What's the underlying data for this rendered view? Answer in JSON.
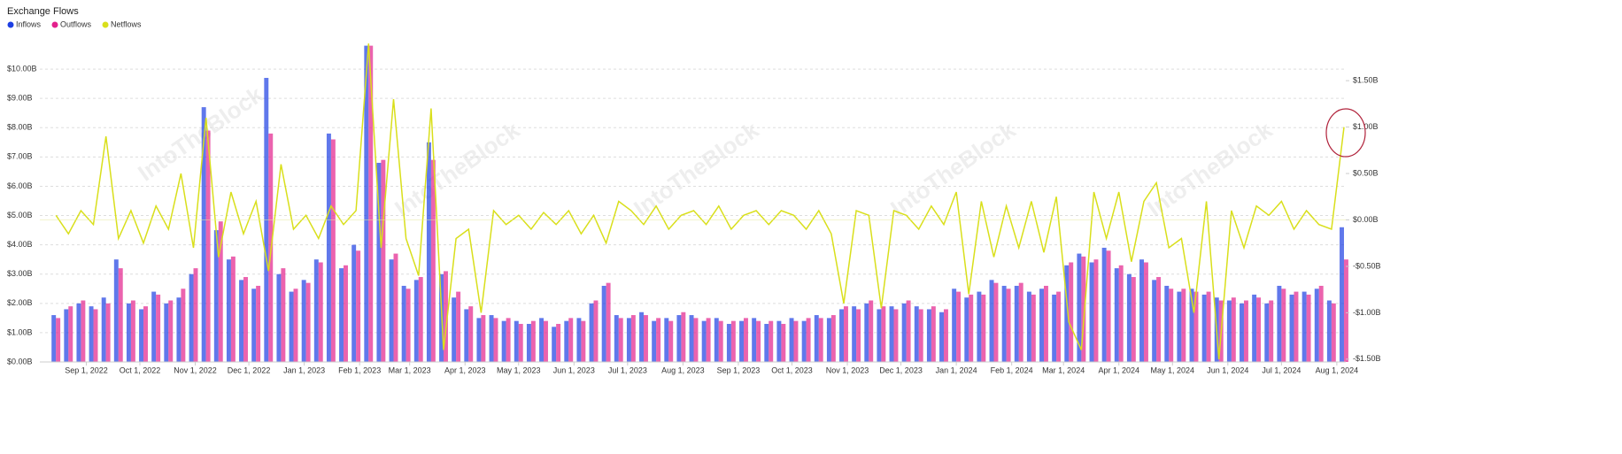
{
  "chart_data": {
    "type": "bar_line",
    "title": "Exchange Flows",
    "watermark": "IntoTheBlock",
    "x": [
      "2022-08-15",
      "2022-08-22",
      "2022-08-29",
      "2022-09-05",
      "2022-09-12",
      "2022-09-19",
      "2022-09-26",
      "2022-10-03",
      "2022-10-10",
      "2022-10-17",
      "2022-10-24",
      "2022-10-31",
      "2022-11-07",
      "2022-11-14",
      "2022-11-21",
      "2022-11-28",
      "2022-12-05",
      "2022-12-12",
      "2022-12-19",
      "2022-12-26",
      "2023-01-02",
      "2023-01-09",
      "2023-01-16",
      "2023-01-23",
      "2023-01-30",
      "2023-02-06",
      "2023-02-13",
      "2023-02-20",
      "2023-02-27",
      "2023-03-06",
      "2023-03-13",
      "2023-03-20",
      "2023-03-27",
      "2023-04-03",
      "2023-04-10",
      "2023-04-17",
      "2023-04-24",
      "2023-05-01",
      "2023-05-08",
      "2023-05-15",
      "2023-05-22",
      "2023-05-29",
      "2023-06-05",
      "2023-06-12",
      "2023-06-19",
      "2023-06-26",
      "2023-07-03",
      "2023-07-10",
      "2023-07-17",
      "2023-07-24",
      "2023-07-31",
      "2023-08-07",
      "2023-08-14",
      "2023-08-21",
      "2023-08-28",
      "2023-09-04",
      "2023-09-11",
      "2023-09-18",
      "2023-09-25",
      "2023-10-02",
      "2023-10-09",
      "2023-10-16",
      "2023-10-23",
      "2023-10-30",
      "2023-11-06",
      "2023-11-13",
      "2023-11-20",
      "2023-11-27",
      "2023-12-04",
      "2023-12-11",
      "2023-12-18",
      "2023-12-25",
      "2024-01-01",
      "2024-01-08",
      "2024-01-15",
      "2024-01-22",
      "2024-01-29",
      "2024-02-05",
      "2024-02-12",
      "2024-02-19",
      "2024-02-26",
      "2024-03-04",
      "2024-03-11",
      "2024-03-18",
      "2024-03-25",
      "2024-04-01",
      "2024-04-08",
      "2024-04-15",
      "2024-04-22",
      "2024-04-29",
      "2024-05-06",
      "2024-05-13",
      "2024-05-20",
      "2024-05-27",
      "2024-06-03",
      "2024-06-10",
      "2024-06-17",
      "2024-06-24",
      "2024-07-01",
      "2024-07-08",
      "2024-07-15",
      "2024-07-22",
      "2024-07-29",
      "2024-08-05"
    ],
    "xlim": [
      "2022-08-06",
      "2024-08-06"
    ],
    "xticks": [
      {
        "value": "2022-09-01",
        "label": "Sep 1, 2022"
      },
      {
        "value": "2022-10-01",
        "label": "Oct 1, 2022"
      },
      {
        "value": "2022-11-01",
        "label": "Nov 1, 2022"
      },
      {
        "value": "2022-12-01",
        "label": "Dec 1, 2022"
      },
      {
        "value": "2023-01-01",
        "label": "Jan 1, 2023"
      },
      {
        "value": "2023-02-01",
        "label": "Feb 1, 2023"
      },
      {
        "value": "2023-03-01",
        "label": "Mar 1, 2023"
      },
      {
        "value": "2023-04-01",
        "label": "Apr 1, 2023"
      },
      {
        "value": "2023-05-01",
        "label": "May 1, 2023"
      },
      {
        "value": "2023-06-01",
        "label": "Jun 1, 2023"
      },
      {
        "value": "2023-07-01",
        "label": "Jul 1, 2023"
      },
      {
        "value": "2023-08-01",
        "label": "Aug 1, 2023"
      },
      {
        "value": "2023-09-01",
        "label": "Sep 1, 2023"
      },
      {
        "value": "2023-10-01",
        "label": "Oct 1, 2023"
      },
      {
        "value": "2023-11-01",
        "label": "Nov 1, 2023"
      },
      {
        "value": "2023-12-01",
        "label": "Dec 1, 2023"
      },
      {
        "value": "2024-01-01",
        "label": "Jan 1, 2024"
      },
      {
        "value": "2024-02-01",
        "label": "Feb 1, 2024"
      },
      {
        "value": "2024-03-01",
        "label": "Mar 1, 2024"
      },
      {
        "value": "2024-04-01",
        "label": "Apr 1, 2024"
      },
      {
        "value": "2024-05-01",
        "label": "May 1, 2024"
      },
      {
        "value": "2024-06-01",
        "label": "Jun 1, 2024"
      },
      {
        "value": "2024-07-01",
        "label": "Jul 1, 2024"
      },
      {
        "value": "2024-08-01",
        "label": "Aug 1, 2024"
      }
    ],
    "ylim": [
      0,
      11
    ],
    "yticks": [
      {
        "value": 0,
        "label": "$0.00B"
      },
      {
        "value": 1,
        "label": "$1.00B"
      },
      {
        "value": 2,
        "label": "$2.00B"
      },
      {
        "value": 3,
        "label": "$3.00B"
      },
      {
        "value": 4,
        "label": "$4.00B"
      },
      {
        "value": 5,
        "label": "$5.00B"
      },
      {
        "value": 6,
        "label": "$6.00B"
      },
      {
        "value": 7,
        "label": "$7.00B"
      },
      {
        "value": 8,
        "label": "$8.00B"
      },
      {
        "value": 9,
        "label": "$9.00B"
      },
      {
        "value": 10,
        "label": "$10.00B"
      }
    ],
    "y2lim": [
      -1.53,
      1.94
    ],
    "y2ticks": [
      {
        "value": -1.5,
        "label": "-$1.50B"
      },
      {
        "value": -1,
        "label": "-$1.00B"
      },
      {
        "value": -0.5,
        "label": "-$0.50B"
      },
      {
        "value": 0,
        "label": "$0.00B"
      },
      {
        "value": 0.5,
        "label": "$0.50B"
      },
      {
        "value": 1,
        "label": "$1.00B"
      },
      {
        "value": 1.5,
        "label": "$1.50B"
      }
    ],
    "grid": true,
    "legend": "top-left",
    "series": [
      {
        "name": "Inflows",
        "color": "#1d3fe3",
        "kind": "bar",
        "values": [
          1.6,
          1.8,
          2.0,
          1.9,
          2.2,
          3.5,
          2.0,
          1.8,
          2.4,
          2.0,
          2.2,
          3.0,
          8.7,
          4.5,
          3.5,
          2.8,
          2.5,
          9.7,
          3.0,
          2.4,
          2.8,
          3.5,
          7.8,
          3.2,
          4.0,
          10.8,
          6.8,
          3.5,
          2.6,
          2.8,
          7.5,
          3.0,
          2.2,
          1.8,
          1.5,
          1.6,
          1.4,
          1.4,
          1.3,
          1.5,
          1.2,
          1.4,
          1.5,
          2.0,
          2.6,
          1.6,
          1.5,
          1.7,
          1.4,
          1.5,
          1.6,
          1.6,
          1.4,
          1.5,
          1.3,
          1.4,
          1.5,
          1.3,
          1.4,
          1.5,
          1.4,
          1.6,
          1.5,
          1.8,
          1.9,
          2.0,
          1.8,
          1.9,
          2.0,
          1.9,
          1.8,
          1.7,
          2.5,
          2.2,
          2.4,
          2.8,
          2.6,
          2.6,
          2.4,
          2.5,
          2.3,
          3.3,
          3.7,
          3.4,
          3.9,
          3.2,
          3.0,
          3.5,
          2.8,
          2.6,
          2.4,
          2.5,
          2.3,
          2.2,
          2.1,
          2.0,
          2.3,
          2.0,
          2.6,
          2.3,
          2.4,
          2.5,
          2.1,
          4.6
        ]
      },
      {
        "name": "Outflows",
        "color": "#e3218c",
        "kind": "bar",
        "values": [
          1.5,
          1.9,
          2.1,
          1.8,
          2.0,
          3.2,
          2.1,
          1.9,
          2.3,
          2.1,
          2.5,
          3.2,
          7.9,
          4.8,
          3.6,
          2.9,
          2.6,
          7.8,
          3.2,
          2.5,
          2.7,
          3.4,
          7.6,
          3.3,
          3.8,
          10.8,
          6.9,
          3.7,
          2.5,
          2.9,
          6.9,
          3.1,
          2.4,
          1.9,
          1.6,
          1.5,
          1.5,
          1.3,
          1.4,
          1.4,
          1.3,
          1.5,
          1.4,
          2.1,
          2.7,
          1.5,
          1.6,
          1.6,
          1.5,
          1.4,
          1.7,
          1.5,
          1.5,
          1.4,
          1.4,
          1.5,
          1.4,
          1.4,
          1.3,
          1.4,
          1.5,
          1.5,
          1.6,
          1.9,
          1.8,
          2.1,
          1.9,
          1.8,
          2.1,
          1.8,
          1.9,
          1.8,
          2.4,
          2.3,
          2.3,
          2.7,
          2.5,
          2.7,
          2.3,
          2.6,
          2.4,
          3.4,
          3.6,
          3.5,
          3.8,
          3.3,
          2.9,
          3.4,
          2.9,
          2.5,
          2.5,
          2.4,
          2.4,
          2.1,
          2.2,
          2.1,
          2.2,
          2.1,
          2.5,
          2.4,
          2.3,
          2.6,
          2.0,
          3.5
        ]
      },
      {
        "name": "Netflows",
        "color": "#d9df1b",
        "kind": "line",
        "axis": "y2",
        "values": [
          0.05,
          -0.15,
          0.1,
          -0.05,
          0.9,
          -0.2,
          0.1,
          -0.25,
          0.15,
          -0.1,
          0.5,
          -0.3,
          1.1,
          -0.4,
          0.3,
          -0.15,
          0.2,
          -0.55,
          0.6,
          -0.1,
          0.05,
          -0.2,
          0.15,
          -0.05,
          0.1,
          1.9,
          -0.3,
          1.3,
          -0.2,
          -0.6,
          1.2,
          -1.4,
          -0.2,
          -0.1,
          -1.0,
          0.1,
          -0.05,
          0.05,
          -0.1,
          0.08,
          -0.05,
          0.1,
          -0.15,
          0.05,
          -0.25,
          0.2,
          0.1,
          -0.05,
          0.15,
          -0.1,
          0.05,
          0.1,
          -0.05,
          0.15,
          -0.1,
          0.05,
          0.1,
          -0.05,
          0.1,
          0.05,
          -0.1,
          0.1,
          -0.15,
          -0.9,
          0.1,
          0.05,
          -0.95,
          0.1,
          0.05,
          -0.1,
          0.15,
          -0.05,
          0.3,
          -0.8,
          0.2,
          -0.4,
          0.15,
          -0.3,
          0.2,
          -0.35,
          0.25,
          -1.1,
          -1.4,
          0.3,
          -0.2,
          0.3,
          -0.45,
          0.2,
          0.4,
          -0.3,
          -0.2,
          -1.0,
          0.2,
          -1.5,
          0.1,
          -0.3,
          0.15,
          0.05,
          0.2,
          -0.1,
          0.1,
          -0.05,
          -0.1,
          1.0
        ]
      }
    ]
  }
}
